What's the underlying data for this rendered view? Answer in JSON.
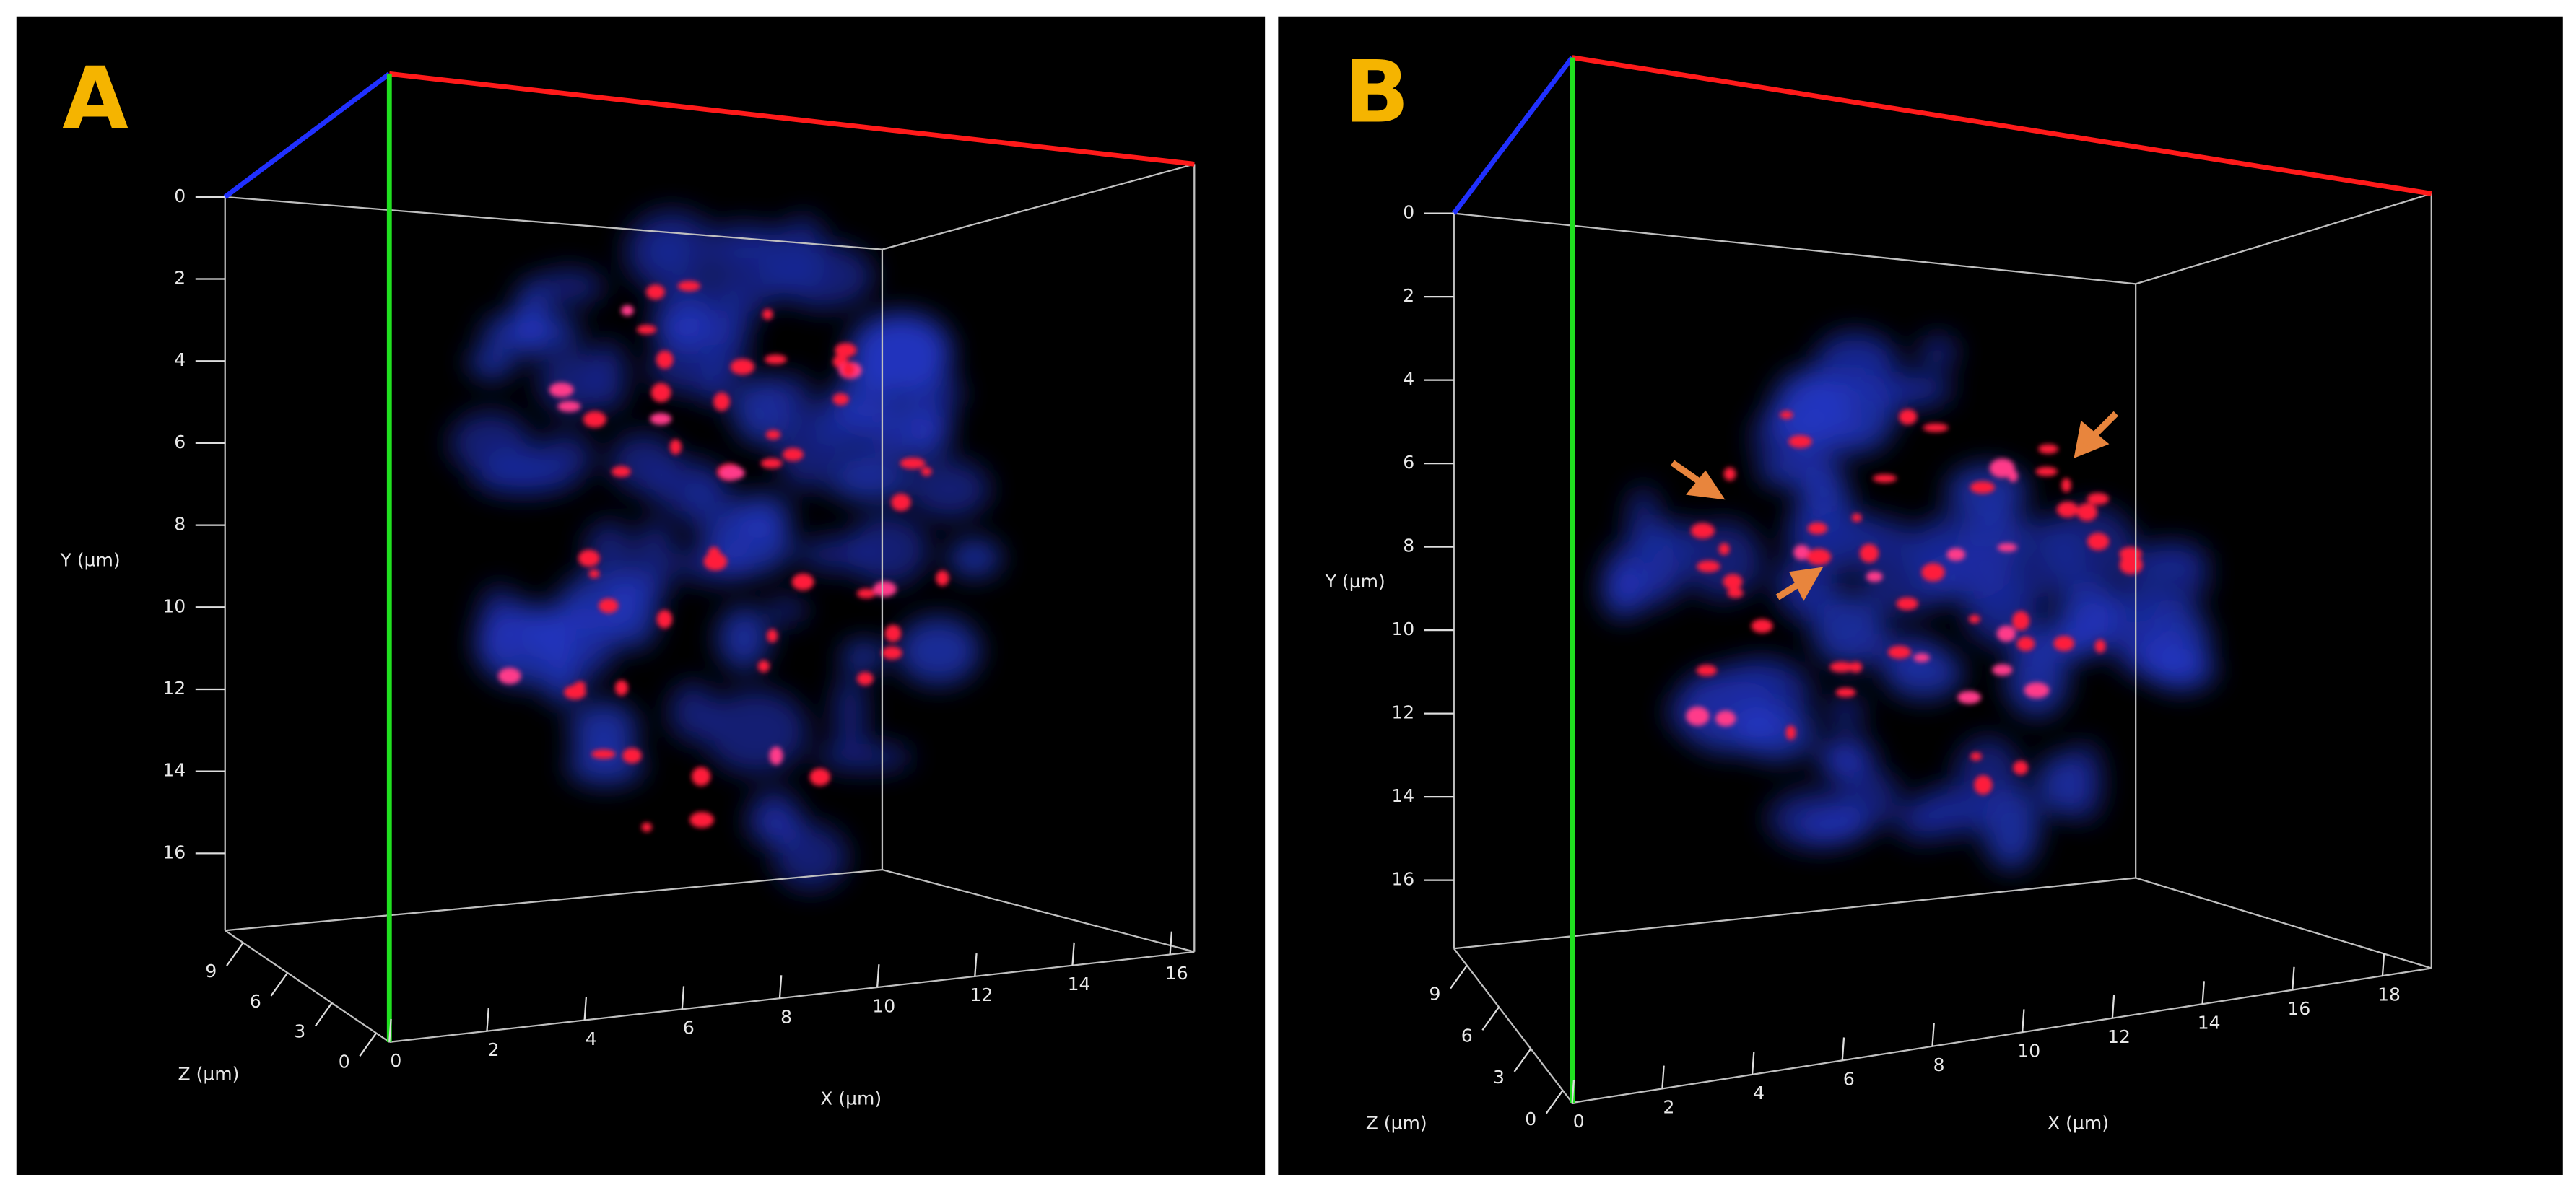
{
  "panels": [
    {
      "label": "A",
      "y_axis": {
        "label": "Y (µm)",
        "ticks": [
          "0",
          "2",
          "4",
          "6",
          "8",
          "10",
          "12",
          "14",
          "16"
        ]
      },
      "x_axis": {
        "label": "X (µm)",
        "ticks": [
          "0",
          "2",
          "4",
          "6",
          "8",
          "10",
          "12",
          "14",
          "16"
        ]
      },
      "z_axis": {
        "label": "Z (µm)",
        "ticks": [
          "0",
          "3",
          "6",
          "9"
        ]
      }
    },
    {
      "label": "B",
      "y_axis": {
        "label": "Y (µm)",
        "ticks": [
          "0",
          "2",
          "4",
          "6",
          "8",
          "10",
          "12",
          "14",
          "16"
        ]
      },
      "x_axis": {
        "label": "X (µm)",
        "ticks": [
          "0",
          "2",
          "4",
          "6",
          "8",
          "10",
          "12",
          "14",
          "16",
          "18"
        ]
      },
      "z_axis": {
        "label": "Z (µm)",
        "ticks": [
          "0",
          "3",
          "6",
          "9"
        ]
      }
    }
  ]
}
